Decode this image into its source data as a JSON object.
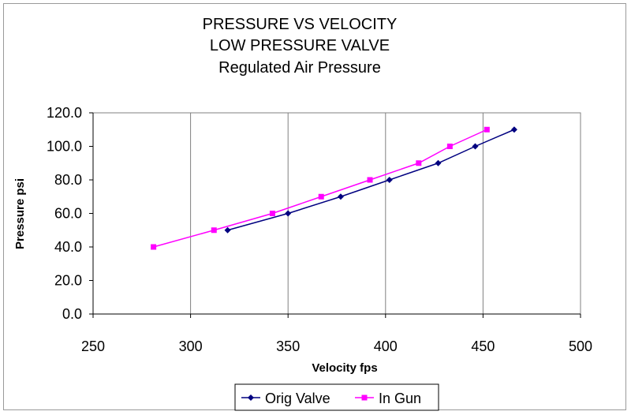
{
  "chart_data": {
    "type": "scatter",
    "title_lines": [
      "PRESSURE VS VELOCITY",
      "LOW PRESSURE VALVE",
      "Regulated Air Pressure"
    ],
    "xlabel": "Velocity fps",
    "ylabel": "Pressure psi",
    "xlim": [
      250,
      500
    ],
    "ylim": [
      0,
      120
    ],
    "x_ticks": [
      250,
      300,
      350,
      400,
      450,
      500
    ],
    "y_ticks": [
      "0.0",
      "20.0",
      "40.0",
      "60.0",
      "80.0",
      "100.0",
      "120.0"
    ],
    "grid": "vertical",
    "legend_position": "bottom",
    "series": [
      {
        "name": "Orig Valve",
        "color": "#000080",
        "marker": "diamond",
        "x": [
          319,
          350,
          377,
          402,
          427,
          446,
          466
        ],
        "y": [
          50,
          60,
          70,
          80,
          90,
          100,
          110
        ]
      },
      {
        "name": "In Gun",
        "color": "#ff00ff",
        "marker": "square",
        "x": [
          281,
          312,
          342,
          367,
          392,
          417,
          433,
          452
        ],
        "y": [
          40,
          50,
          60,
          70,
          80,
          90,
          100,
          110
        ]
      }
    ]
  }
}
